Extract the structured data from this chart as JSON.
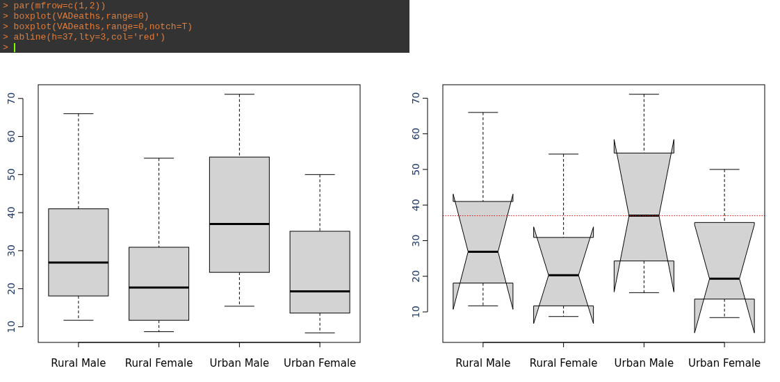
{
  "chart_data": [
    {
      "type": "other",
      "annotations": [
        "> par(mfrow=c(1,2))",
        "> boxplot(VADeaths,range=0)",
        "> boxplot(VADeaths,range=0,notch=T)",
        "> abline(h=37,lty=3,col='red')",
        ">"
      ]
    },
    {
      "type": "box",
      "categories": [
        "Rural Male",
        "Rural Female",
        "Urban Male",
        "Urban Female"
      ],
      "ylim": [
        5.89,
        73.61
      ],
      "yticks": [
        10,
        20,
        30,
        40,
        50,
        60,
        70
      ],
      "boxes": [
        {
          "low": 11.7,
          "q1": 18.1,
          "median": 26.9,
          "q3": 41.0,
          "high": 66.0
        },
        {
          "low": 8.7,
          "q1": 11.7,
          "median": 20.3,
          "q3": 30.9,
          "high": 54.3
        },
        {
          "low": 15.4,
          "q1": 24.3,
          "median": 37.0,
          "q3": 54.6,
          "high": 71.1
        },
        {
          "low": 8.4,
          "q1": 13.6,
          "median": 19.3,
          "q3": 35.1,
          "high": 50.0
        }
      ],
      "color": "#d3d3d3"
    },
    {
      "type": "box",
      "categories": [
        "Rural Male",
        "Rural Female",
        "Urban Male",
        "Urban Female"
      ],
      "ylim": [
        1.43,
        73.78
      ],
      "yticks": [
        10,
        20,
        30,
        40,
        50,
        60,
        70
      ],
      "boxes": [
        {
          "low": 11.7,
          "q1": 18.1,
          "median": 26.9,
          "q3": 41.0,
          "high": 66.0
        },
        {
          "low": 8.7,
          "q1": 11.7,
          "median": 20.3,
          "q3": 30.9,
          "high": 54.3
        },
        {
          "low": 15.4,
          "q1": 24.3,
          "median": 37.0,
          "q3": 54.6,
          "high": 71.1
        },
        {
          "low": 8.4,
          "q1": 13.6,
          "median": 19.3,
          "q3": 35.1,
          "high": 50.0
        }
      ],
      "color": "#d3d3d3",
      "ref_lines": [
        {
          "axis": "y",
          "value": 37,
          "color": "#ff0000",
          "line_style": "dotted"
        }
      ]
    }
  ]
}
